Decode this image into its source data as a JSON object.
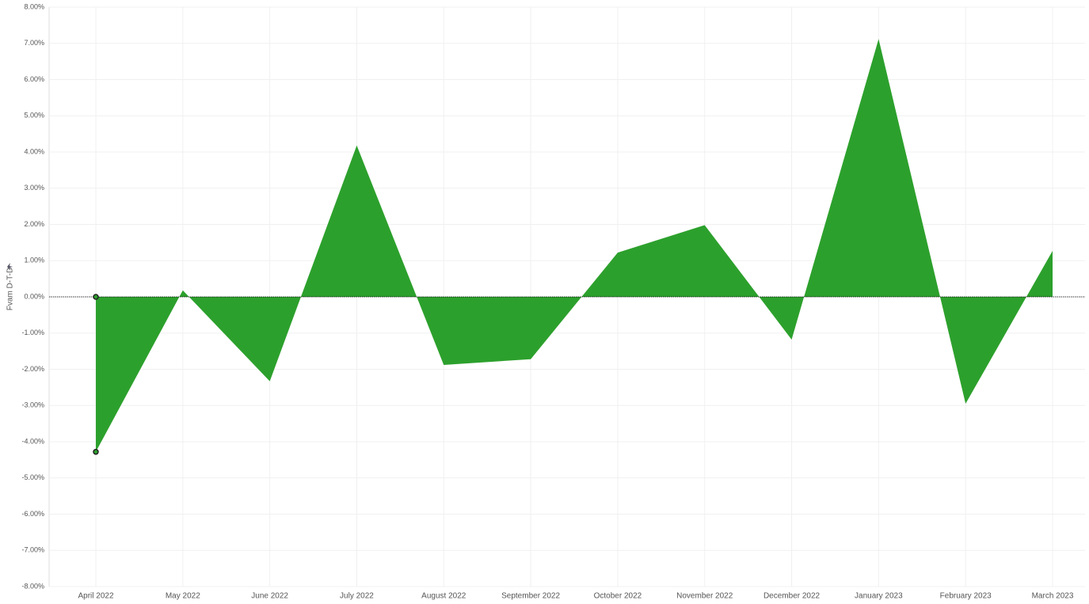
{
  "chart_data": {
    "type": "area",
    "y_label": "Fvam D-T-D",
    "categories": [
      "April 2022",
      "May 2022",
      "June 2022",
      "July 2022",
      "August 2022",
      "September 2022",
      "October 2022",
      "November 2022",
      "December 2022",
      "January 2023",
      "February 2023",
      "March 2023"
    ],
    "values": [
      -4.28,
      0.18,
      -2.33,
      4.18,
      -1.88,
      -1.72,
      1.22,
      1.98,
      -1.18,
      7.12,
      -2.95,
      1.27
    ],
    "color": "#2ca02c",
    "ylim": [
      -8,
      8
    ],
    "yticks": [
      {
        "value": 8,
        "label": "8.00%"
      },
      {
        "value": 7,
        "label": "7.00%"
      },
      {
        "value": 6,
        "label": "6.00%"
      },
      {
        "value": 5,
        "label": "5.00%"
      },
      {
        "value": 4,
        "label": "4.00%"
      },
      {
        "value": 3,
        "label": "3.00%"
      },
      {
        "value": 2,
        "label": "2.00%"
      },
      {
        "value": 1,
        "label": "1.00%"
      },
      {
        "value": 0,
        "label": "0.00%"
      },
      {
        "value": -1,
        "label": "-1.00%"
      },
      {
        "value": -2,
        "label": "-2.00%"
      },
      {
        "value": -3,
        "label": "-3.00%"
      },
      {
        "value": -4,
        "label": "-4.00%"
      },
      {
        "value": -5,
        "label": "-5.00%"
      },
      {
        "value": -6,
        "label": "-6.00%"
      },
      {
        "value": -7,
        "label": "-7.00%"
      },
      {
        "value": -8,
        "label": "-8.00%"
      }
    ],
    "grid": true
  }
}
